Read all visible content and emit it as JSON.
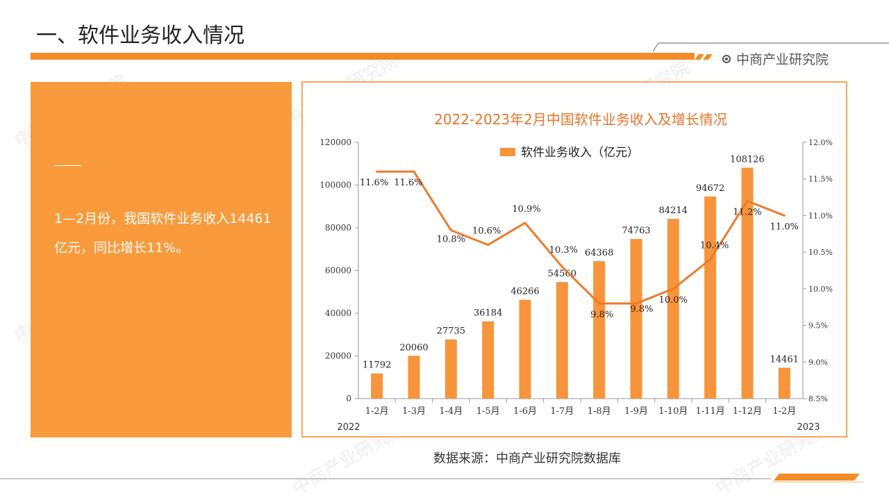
{
  "header": {
    "title": "一、软件业务收入情况",
    "brand": "中商产业研究院"
  },
  "left_panel": {
    "text": "1—2月份，我国软件业务收入14461亿元，同比增长11%。"
  },
  "footer": {
    "source": "数据来源：中商产业研究院数据库"
  },
  "colors": {
    "accent": "#f28c28",
    "panel": "#f99b3c",
    "bar": "#f7943c",
    "line": "#ef7a2b",
    "chart_title": "#e8742a"
  },
  "chart_data": {
    "type": "bar",
    "title": "2022-2023年2月中国软件业务收入及增长情况",
    "categories": [
      "1-2月",
      "1-3月",
      "1-4月",
      "1-5月",
      "1-6月",
      "1-7月",
      "1-8月",
      "1-9月",
      "1-10月",
      "1-11月",
      "1-12月",
      "1-2月"
    ],
    "x_group_labels": [
      "2022",
      "2023"
    ],
    "series": [
      {
        "name": "软件业务收入（亿元）",
        "type": "bar",
        "axis": "left",
        "values": [
          11792,
          20060,
          27735,
          36184,
          46266,
          54560,
          64368,
          74763,
          84214,
          94672,
          108126,
          14461
        ]
      },
      {
        "name": "",
        "type": "line",
        "axis": "right",
        "values": [
          11.6,
          11.6,
          10.8,
          10.6,
          10.9,
          10.3,
          9.8,
          9.8,
          10.0,
          10.4,
          11.2,
          11.0
        ],
        "labels": [
          "11.6%",
          "11.6%",
          "10.8%",
          "10.6%",
          "10.9%",
          "10.3%",
          "9.8%",
          "9.8%",
          "10.0%",
          "10.4%",
          "11.2%",
          "11.0%"
        ]
      }
    ],
    "y_left": {
      "min": 0,
      "max": 120000,
      "ticks": [
        "0",
        "20000",
        "40000",
        "60000",
        "80000",
        "100000",
        "120000"
      ]
    },
    "y_right": {
      "min": 8.5,
      "max": 12.0,
      "ticks": [
        "8.5%",
        "9.0%",
        "9.5%",
        "10.0%",
        "10.5%",
        "11.0%",
        "11.5%",
        "12.0%"
      ]
    },
    "grid": false,
    "legend": "top-center"
  }
}
